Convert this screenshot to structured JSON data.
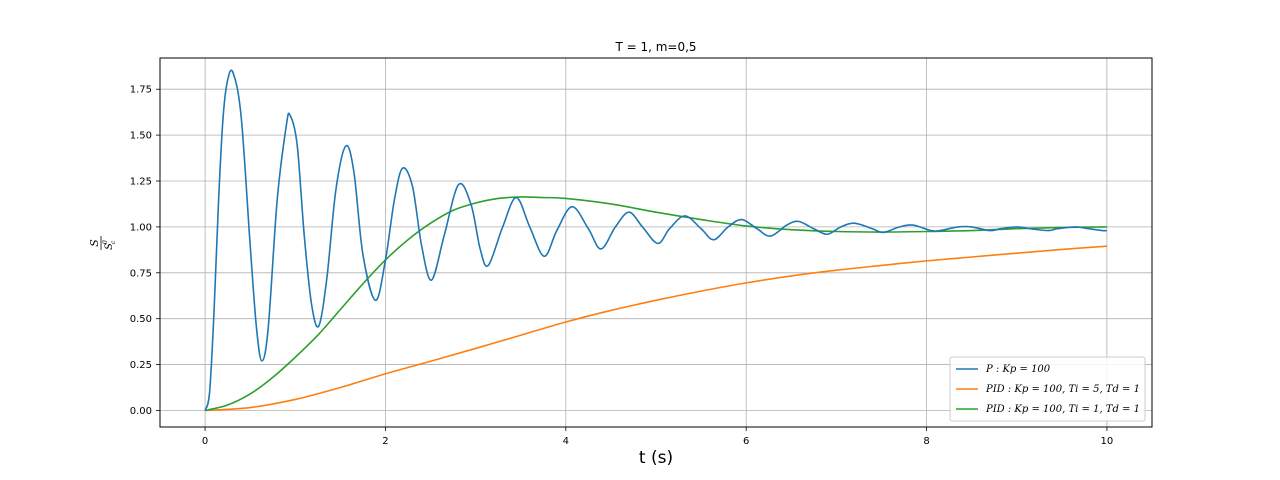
{
  "chart_data": {
    "type": "line",
    "title": "T = 1, m=0,5",
    "xlabel": "t (s)",
    "ylabel": {
      "numerator": "S",
      "denominator_base": "S",
      "denominator_sub": "c",
      "denominator_sup": "0"
    },
    "xlim": [
      -0.5,
      10.5
    ],
    "ylim": [
      -0.09,
      1.92
    ],
    "xticks": [
      0,
      2,
      4,
      6,
      8,
      10
    ],
    "xtick_labels": [
      "0",
      "2",
      "4",
      "6",
      "8",
      "10"
    ],
    "yticks": [
      0.0,
      0.25,
      0.5,
      0.75,
      1.0,
      1.25,
      1.5,
      1.75
    ],
    "ytick_labels": [
      "0.00",
      "0.25",
      "0.50",
      "0.75",
      "1.00",
      "1.25",
      "1.50",
      "1.75"
    ],
    "grid": true,
    "legend_position": "lower-right",
    "t_range": [
      0,
      10
    ],
    "series": [
      {
        "name": "P : K_p = 100",
        "legend_text": "P : Kp = 100",
        "color": "#1f77b4",
        "x": [
          0,
          0.05,
          0.1,
          0.15,
          0.2,
          0.25,
          0.31,
          0.4,
          0.5,
          0.57,
          0.63,
          0.7,
          0.8,
          0.9,
          0.94,
          1.02,
          1.1,
          1.18,
          1.26,
          1.35,
          1.45,
          1.56,
          1.65,
          1.75,
          1.89,
          2.0,
          2.1,
          2.19,
          2.3,
          2.4,
          2.51,
          2.65,
          2.81,
          2.95,
          3.05,
          3.14,
          3.3,
          3.45,
          3.6,
          3.76,
          3.9,
          4.07,
          4.25,
          4.39,
          4.55,
          4.7,
          4.85,
          5.02,
          5.15,
          5.32,
          5.5,
          5.64,
          5.8,
          5.95,
          6.12,
          6.27,
          6.45,
          6.58,
          6.75,
          6.9,
          7.05,
          7.2,
          7.4,
          7.52,
          7.7,
          7.85,
          8.05,
          8.15,
          8.35,
          8.5,
          8.7,
          8.82,
          9.0,
          9.15,
          9.35,
          9.45,
          9.65,
          9.8,
          9.95,
          10.0
        ],
        "y": [
          0.0,
          0.1,
          0.55,
          1.15,
          1.6,
          1.8,
          1.84,
          1.6,
          0.9,
          0.45,
          0.27,
          0.45,
          1.15,
          1.55,
          1.61,
          1.45,
          0.95,
          0.58,
          0.46,
          0.72,
          1.2,
          1.44,
          1.3,
          0.85,
          0.6,
          0.82,
          1.15,
          1.32,
          1.22,
          0.9,
          0.71,
          0.95,
          1.23,
          1.12,
          0.88,
          0.79,
          1.0,
          1.16,
          1.0,
          0.84,
          0.98,
          1.11,
          0.99,
          0.88,
          1.0,
          1.08,
          1.0,
          0.91,
          0.99,
          1.06,
          0.99,
          0.93,
          1.0,
          1.04,
          0.99,
          0.95,
          1.01,
          1.03,
          0.99,
          0.96,
          1.0,
          1.02,
          0.99,
          0.97,
          1.0,
          1.01,
          0.98,
          0.98,
          1.0,
          1.0,
          0.98,
          0.99,
          1.0,
          0.99,
          0.98,
          0.99,
          1.0,
          0.99,
          0.98,
          0.98
        ]
      },
      {
        "name": "PID : K_p = 100, T_i = 5, T_d = 1",
        "legend_text": "PID : Kp = 100,  Ti = 5,  Td = 1",
        "color": "#ff7f0e",
        "x": [
          0,
          0.5,
          1,
          1.5,
          2,
          2.5,
          3,
          3.5,
          4,
          4.5,
          5,
          5.5,
          6,
          6.5,
          7,
          7.5,
          8,
          8.5,
          9,
          9.5,
          10
        ],
        "y": [
          0.0,
          0.016,
          0.06,
          0.125,
          0.2,
          0.268,
          0.338,
          0.41,
          0.482,
          0.545,
          0.6,
          0.65,
          0.695,
          0.733,
          0.764,
          0.79,
          0.815,
          0.836,
          0.857,
          0.877,
          0.895
        ]
      },
      {
        "name": "PID : K_p = 100, T_i = 1, T_d = 1",
        "legend_text": "PID : Kp = 100,  Ti = 1,  Td = 1",
        "color": "#2ca02c",
        "x": [
          0,
          0.25,
          0.5,
          0.75,
          1,
          1.25,
          1.5,
          1.75,
          2,
          2.25,
          2.5,
          2.75,
          3,
          3.25,
          3.5,
          3.75,
          4,
          4.5,
          5,
          5.5,
          6,
          6.5,
          7,
          7.5,
          8,
          8.5,
          9,
          9.5,
          10
        ],
        "y": [
          0.0,
          0.03,
          0.09,
          0.18,
          0.29,
          0.41,
          0.55,
          0.69,
          0.82,
          0.93,
          1.02,
          1.09,
          1.13,
          1.155,
          1.163,
          1.16,
          1.155,
          1.125,
          1.08,
          1.04,
          1.005,
          0.985,
          0.975,
          0.972,
          0.975,
          0.98,
          0.99,
          0.997,
          1.0
        ]
      }
    ]
  }
}
